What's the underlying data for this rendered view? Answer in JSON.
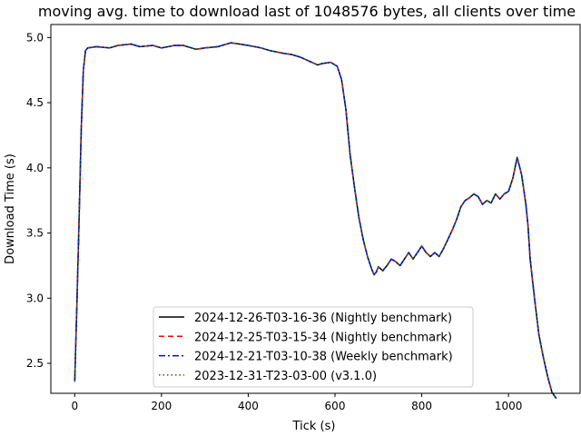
{
  "chart_data": {
    "type": "line",
    "title": "moving avg. time to download last of 1048576 bytes, all clients over time",
    "xlabel": "Tick (s)",
    "ylabel": "Download Time (s)",
    "xlim": [
      -55,
      1165
    ],
    "ylim": [
      2.27,
      5.1
    ],
    "xticks": [
      "0",
      "200",
      "400",
      "600",
      "800",
      "1000"
    ],
    "yticks": [
      "2.5",
      "3.0",
      "3.5",
      "4.0",
      "4.5",
      "5.0"
    ],
    "grid": false,
    "legend_position": "lower-center",
    "x": [
      0,
      5,
      10,
      15,
      20,
      25,
      30,
      50,
      80,
      100,
      130,
      150,
      180,
      200,
      230,
      250,
      280,
      300,
      330,
      360,
      380,
      400,
      430,
      450,
      480,
      500,
      520,
      540,
      560,
      570,
      590,
      605,
      615,
      625,
      635,
      645,
      655,
      665,
      675,
      685,
      690,
      695,
      700,
      710,
      720,
      730,
      740,
      750,
      760,
      770,
      780,
      790,
      800,
      810,
      820,
      830,
      840,
      850,
      860,
      870,
      880,
      890,
      900,
      910,
      920,
      930,
      940,
      950,
      960,
      970,
      980,
      990,
      1000,
      1010,
      1020,
      1030,
      1040,
      1045,
      1050,
      1060,
      1070,
      1080,
      1090,
      1100,
      1110
    ],
    "series": [
      {
        "name": "2024-12-26-T03-16-36 (Nightly benchmark)",
        "color": "#000000",
        "dash": "solid",
        "values": [
          2.36,
          2.95,
          3.6,
          4.3,
          4.75,
          4.9,
          4.92,
          4.93,
          4.92,
          4.94,
          4.95,
          4.93,
          4.94,
          4.92,
          4.94,
          4.94,
          4.91,
          4.92,
          4.93,
          4.96,
          4.95,
          4.94,
          4.92,
          4.9,
          4.88,
          4.87,
          4.85,
          4.82,
          4.79,
          4.8,
          4.81,
          4.78,
          4.68,
          4.45,
          4.1,
          3.85,
          3.62,
          3.45,
          3.32,
          3.22,
          3.18,
          3.2,
          3.24,
          3.21,
          3.25,
          3.3,
          3.28,
          3.25,
          3.3,
          3.35,
          3.3,
          3.35,
          3.4,
          3.35,
          3.32,
          3.35,
          3.32,
          3.38,
          3.45,
          3.52,
          3.6,
          3.7,
          3.75,
          3.77,
          3.8,
          3.78,
          3.72,
          3.75,
          3.73,
          3.8,
          3.76,
          3.8,
          3.82,
          3.92,
          4.08,
          3.95,
          3.72,
          3.55,
          3.3,
          3.0,
          2.72,
          2.55,
          2.4,
          2.28,
          2.23
        ],
        "style": "solid"
      },
      {
        "name": "2024-12-25-T03-15-34 (Nightly benchmark)",
        "color": "#ff0000",
        "dash": "dashed",
        "values": [
          2.36,
          2.95,
          3.6,
          4.3,
          4.75,
          4.9,
          4.92,
          4.93,
          4.92,
          4.94,
          4.95,
          4.93,
          4.94,
          4.92,
          4.94,
          4.94,
          4.91,
          4.92,
          4.93,
          4.96,
          4.95,
          4.94,
          4.92,
          4.9,
          4.88,
          4.87,
          4.85,
          4.82,
          4.79,
          4.8,
          4.81,
          4.78,
          4.68,
          4.45,
          4.1,
          3.85,
          3.62,
          3.45,
          3.32,
          3.22,
          3.18,
          3.2,
          3.24,
          3.21,
          3.25,
          3.3,
          3.28,
          3.25,
          3.3,
          3.35,
          3.3,
          3.35,
          3.4,
          3.35,
          3.32,
          3.35,
          3.32,
          3.38,
          3.45,
          3.52,
          3.6,
          3.7,
          3.75,
          3.77,
          3.8,
          3.78,
          3.72,
          3.75,
          3.73,
          3.8,
          3.76,
          3.8,
          3.82,
          3.92,
          4.08,
          3.95,
          3.72,
          3.55,
          3.3,
          3.0,
          2.72,
          2.55,
          2.4,
          2.28,
          2.23
        ],
        "style": "dashed"
      },
      {
        "name": "2024-12-21-T03-10-38 (Weekly benchmark)",
        "color": "#0000ff",
        "dash": "dashdot",
        "values": [
          2.36,
          2.95,
          3.6,
          4.3,
          4.75,
          4.9,
          4.92,
          4.93,
          4.92,
          4.94,
          4.95,
          4.93,
          4.94,
          4.92,
          4.94,
          4.94,
          4.91,
          4.92,
          4.93,
          4.96,
          4.95,
          4.94,
          4.92,
          4.9,
          4.88,
          4.87,
          4.85,
          4.82,
          4.79,
          4.8,
          4.81,
          4.78,
          4.68,
          4.45,
          4.1,
          3.85,
          3.62,
          3.45,
          3.32,
          3.22,
          3.18,
          3.2,
          3.24,
          3.21,
          3.25,
          3.3,
          3.28,
          3.25,
          3.3,
          3.35,
          3.3,
          3.35,
          3.4,
          3.35,
          3.32,
          3.35,
          3.32,
          3.38,
          3.45,
          3.52,
          3.6,
          3.7,
          3.75,
          3.77,
          3.8,
          3.78,
          3.72,
          3.75,
          3.73,
          3.8,
          3.76,
          3.8,
          3.82,
          3.92,
          4.08,
          3.95,
          3.72,
          3.55,
          3.3,
          3.0,
          2.72,
          2.55,
          2.4,
          2.28,
          2.23
        ],
        "style": "dashdot"
      },
      {
        "name": "2023-12-31-T23-03-00 (v3.1.0)",
        "color": "#008000",
        "dash": "dotted",
        "values": [
          2.36,
          2.95,
          3.6,
          4.3,
          4.75,
          4.9,
          4.92,
          4.93,
          4.92,
          4.94,
          4.95,
          4.93,
          4.94,
          4.92,
          4.94,
          4.94,
          4.91,
          4.92,
          4.93,
          4.96,
          4.95,
          4.94,
          4.92,
          4.9,
          4.88,
          4.87,
          4.85,
          4.82,
          4.79,
          4.8,
          4.81,
          4.78,
          4.68,
          4.45,
          4.1,
          3.85,
          3.62,
          3.45,
          3.32,
          3.22,
          3.18,
          3.2,
          3.24,
          3.21,
          3.25,
          3.3,
          3.28,
          3.25,
          3.3,
          3.35,
          3.3,
          3.35,
          3.4,
          3.35,
          3.32,
          3.35,
          3.32,
          3.38,
          3.45,
          3.52,
          3.6,
          3.7,
          3.75,
          3.77,
          3.8,
          3.78,
          3.72,
          3.75,
          3.73,
          3.8,
          3.76,
          3.8,
          3.82,
          3.92,
          4.08,
          3.95,
          3.72,
          3.55,
          3.3,
          3.0,
          2.72,
          2.55,
          2.4,
          2.28,
          2.23
        ],
        "style": "dotted"
      }
    ]
  }
}
